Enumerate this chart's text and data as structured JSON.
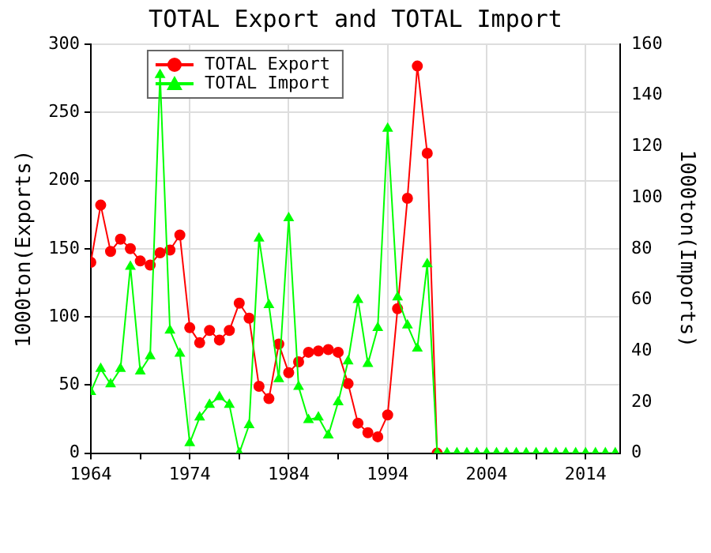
{
  "chart_data": {
    "type": "line",
    "title": "TOTAL Export and TOTAL Import",
    "ylabel": "1000ton(Exports)",
    "y2label": "1000ton(Imports)",
    "x": [
      1964,
      1965,
      1966,
      1967,
      1968,
      1969,
      1970,
      1971,
      1972,
      1973,
      1974,
      1975,
      1976,
      1977,
      1978,
      1979,
      1980,
      1981,
      1982,
      1983,
      1984,
      1985,
      1986,
      1987,
      1988,
      1989,
      1990,
      1991,
      1992,
      1993,
      1994,
      1995,
      1996,
      1997,
      1998,
      1999,
      2000,
      2001,
      2002,
      2003,
      2004,
      2005,
      2006,
      2007,
      2008,
      2009,
      2010,
      2011,
      2012,
      2013,
      2014,
      2015,
      2016,
      2017
    ],
    "series": [
      {
        "name": "TOTAL Export",
        "color": "#ff0000",
        "marker": "circle",
        "values": [
          140,
          182,
          148,
          157,
          150,
          141,
          138,
          147,
          149,
          160,
          92,
          81,
          90,
          83,
          90,
          110,
          99,
          49,
          40,
          80,
          59,
          67,
          74,
          75,
          76,
          74,
          51,
          22,
          15,
          12,
          28,
          106,
          187,
          284,
          220,
          0,
          null,
          null,
          null,
          null,
          null,
          null,
          null,
          null,
          null,
          null,
          null,
          null,
          null,
          null,
          null,
          null,
          null,
          null
        ]
      },
      {
        "name": "TOTAL Import",
        "color": "#00ff00",
        "marker": "triangle",
        "axis": "y2",
        "values": [
          24,
          33,
          27,
          33,
          73,
          32,
          38,
          148,
          48,
          39,
          4,
          14,
          19,
          22,
          19,
          0,
          11,
          84,
          58,
          29,
          92,
          26,
          13,
          14,
          7,
          20,
          36,
          60,
          35,
          49,
          127,
          61,
          50,
          41,
          74,
          0,
          0,
          0,
          0,
          0,
          0,
          0,
          0,
          0,
          0,
          0,
          0,
          0,
          0,
          0,
          0,
          0,
          0,
          0
        ]
      }
    ],
    "xlim": [
      1964,
      2017.5
    ],
    "xticks": [
      1964,
      {
        "value": 1969,
        "label": null
      },
      1974,
      {
        "value": 1979,
        "label": null
      },
      1984,
      {
        "value": 1989,
        "label": null
      },
      1994,
      {
        "value": 1999,
        "label": null
      },
      2004,
      {
        "value": 2009,
        "label": null
      },
      2014
    ],
    "ylim": [
      0,
      300
    ],
    "yticks": [
      0,
      50,
      100,
      150,
      200,
      250,
      300
    ],
    "y2lim": [
      0,
      160
    ],
    "y2ticks": [
      0,
      20,
      40,
      60,
      80,
      100,
      120,
      140,
      160
    ],
    "grid": true,
    "legend": "top left",
    "line_style": "solid"
  }
}
